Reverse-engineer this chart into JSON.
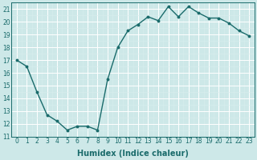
{
  "x": [
    0,
    1,
    2,
    3,
    4,
    5,
    6,
    7,
    8,
    9,
    10,
    11,
    12,
    13,
    14,
    15,
    16,
    17,
    18,
    19,
    20,
    21,
    22,
    23
  ],
  "y": [
    17.0,
    16.5,
    14.5,
    12.7,
    12.2,
    11.5,
    11.8,
    11.8,
    11.5,
    15.5,
    18.0,
    19.3,
    19.8,
    20.4,
    20.1,
    21.2,
    20.4,
    21.2,
    20.7,
    20.3,
    20.3,
    19.9,
    19.3,
    18.9
  ],
  "line_color": "#1a6b6b",
  "marker": "o",
  "marker_size": 1.8,
  "bg_color": "#cde8e8",
  "grid_major_color": "#aed4d4",
  "grid_minor_color": "#bfdfdf",
  "xlabel": "Humidex (Indice chaleur)",
  "xlim": [
    -0.5,
    23.5
  ],
  "ylim": [
    11,
    21.5
  ],
  "yticks": [
    11,
    12,
    13,
    14,
    15,
    16,
    17,
    18,
    19,
    20,
    21
  ],
  "xticks": [
    0,
    1,
    2,
    3,
    4,
    5,
    6,
    7,
    8,
    9,
    10,
    11,
    12,
    13,
    14,
    15,
    16,
    17,
    18,
    19,
    20,
    21,
    22,
    23
  ],
  "tick_fontsize": 5.5,
  "label_fontsize": 7.0,
  "line_width": 1.0
}
